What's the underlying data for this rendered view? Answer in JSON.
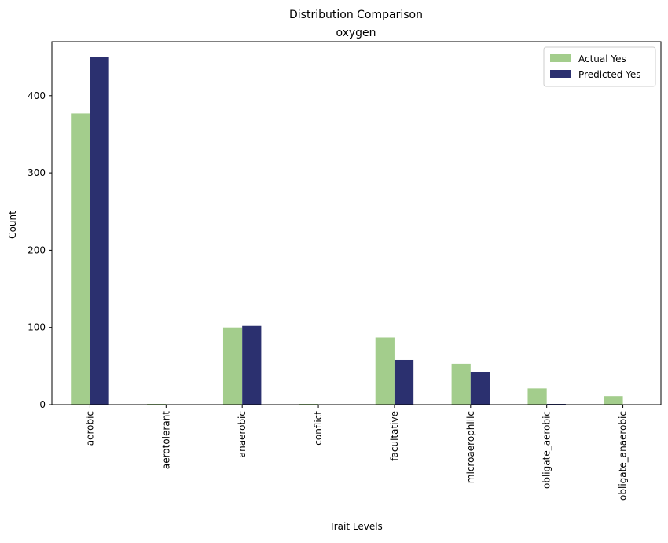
{
  "chart_data": {
    "type": "bar",
    "title": "Distribution Comparison",
    "subtitle": "oxygen",
    "xlabel": "Trait Levels",
    "ylabel": "Count",
    "ylim": [
      0,
      470
    ],
    "yticks": [
      0,
      100,
      200,
      300,
      400
    ],
    "grid": false,
    "legend_position": "top-right",
    "categories": [
      "aerobic",
      "aerotolerant",
      "anaerobic",
      "conflict",
      "facultative",
      "microaerophilic",
      "obligate_aerobic",
      "obligate_anaerobic"
    ],
    "series": [
      {
        "name": "Actual Yes",
        "color": "#a3cd8c",
        "values": [
          377,
          1,
          100,
          1,
          87,
          53,
          21,
          11
        ]
      },
      {
        "name": "Predicted Yes",
        "color": "#2b306f",
        "values": [
          450,
          0,
          102,
          0,
          58,
          42,
          1,
          0
        ]
      }
    ]
  }
}
